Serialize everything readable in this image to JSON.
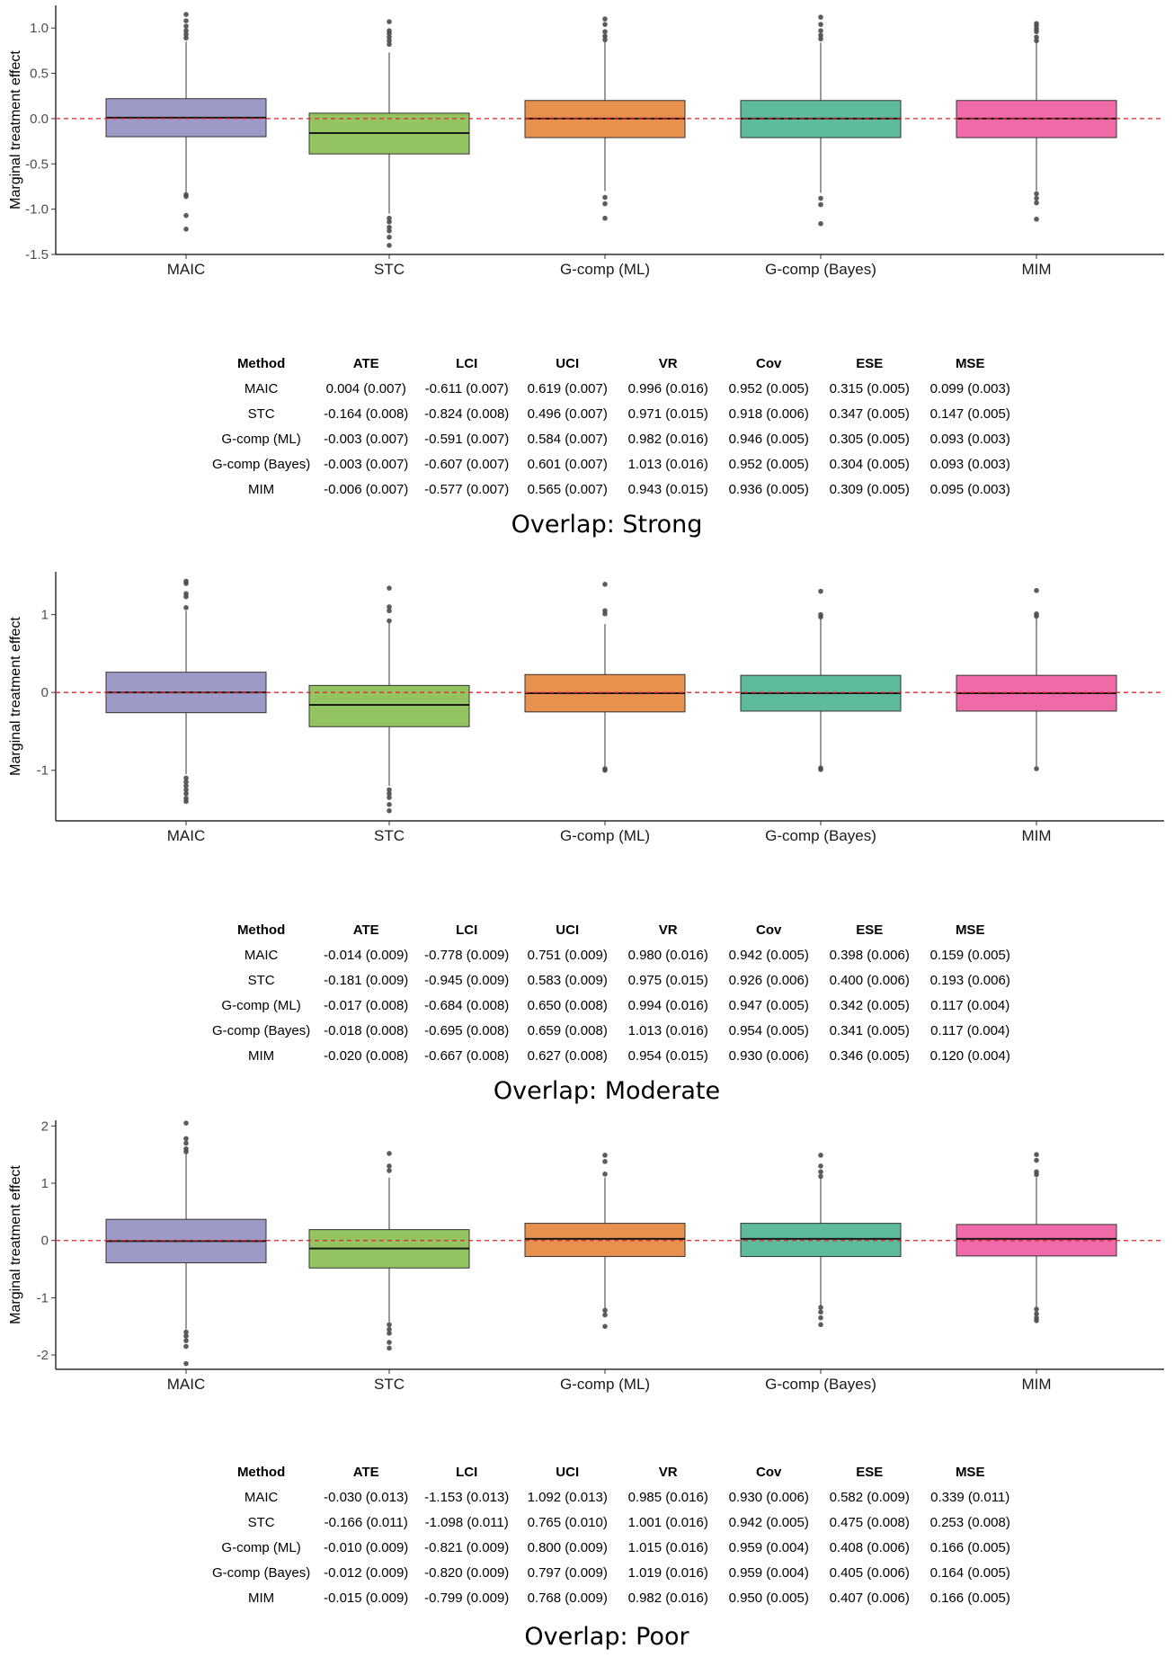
{
  "colors": {
    "MAIC": "#9e9ac8",
    "STC": "#93c461",
    "G-comp (ML)": "#e8904e",
    "G-comp (Bayes)": "#5dba9a",
    "MIM": "#ef6aa9",
    "reference_line": "#e0242a",
    "outlier": "#4a4a4a"
  },
  "chart_data": [
    {
      "type": "box",
      "ylabel": "Marginal treatment effect",
      "categories": [
        "MAIC",
        "STC",
        "G-comp (ML)",
        "G-comp (Bayes)",
        "MIM"
      ],
      "ylim": [
        -1.5,
        1.25
      ],
      "yticks": [
        1.0,
        0.5,
        0.0,
        -0.5,
        -1.0,
        -1.5
      ],
      "ytick_labels": [
        "1.0",
        "0.5",
        "0.0",
        "-0.5",
        "-1.0",
        "-1.5"
      ],
      "reference_y": 0,
      "boxes": [
        {
          "name": "MAIC",
          "q1": -0.2,
          "median": 0.01,
          "q3": 0.22,
          "whisker_low": -0.82,
          "whisker_high": 0.85,
          "outliers": [
            1.15,
            1.08,
            1.02,
            0.97,
            0.93,
            0.89,
            -0.84,
            -0.86,
            -1.07,
            -1.22
          ]
        },
        {
          "name": "STC",
          "q1": -0.39,
          "median": -0.16,
          "q3": 0.06,
          "whisker_low": -1.05,
          "whisker_high": 0.73,
          "outliers": [
            1.07,
            0.97,
            0.94,
            0.9,
            0.86,
            0.82,
            -1.1,
            -1.14,
            -1.2,
            -1.24,
            -1.31,
            -1.4
          ]
        },
        {
          "name": "G-comp (ML)",
          "q1": -0.21,
          "median": 0.0,
          "q3": 0.2,
          "whisker_low": -0.8,
          "whisker_high": 0.85,
          "outliers": [
            1.1,
            1.04,
            0.96,
            0.91,
            0.87,
            -0.87,
            -0.94,
            -1.1
          ]
        },
        {
          "name": "G-comp (Bayes)",
          "q1": -0.21,
          "median": 0.0,
          "q3": 0.2,
          "whisker_low": -0.82,
          "whisker_high": 0.84,
          "outliers": [
            1.12,
            1.04,
            0.97,
            0.92,
            0.88,
            -0.88,
            -0.95,
            -1.16
          ]
        },
        {
          "name": "MIM",
          "q1": -0.21,
          "median": 0.0,
          "q3": 0.2,
          "whisker_low": -0.8,
          "whisker_high": 0.84,
          "outliers": [
            1.05,
            1.02,
            0.99,
            0.96,
            0.9,
            0.86,
            -0.83,
            -0.88,
            -0.93,
            -1.11
          ]
        }
      ]
    },
    {
      "type": "box",
      "ylabel": "Marginal treatment effect",
      "categories": [
        "MAIC",
        "STC",
        "G-comp (ML)",
        "G-comp (Bayes)",
        "MIM"
      ],
      "ylim": [
        -1.65,
        1.55
      ],
      "yticks": [
        1,
        0,
        -1
      ],
      "ytick_labels": [
        "1",
        "0",
        "-1"
      ],
      "reference_y": 0,
      "boxes": [
        {
          "name": "MAIC",
          "q1": -0.26,
          "median": 0.0,
          "q3": 0.26,
          "whisker_low": -1.05,
          "whisker_high": 1.05,
          "outliers": [
            1.43,
            1.4,
            1.27,
            1.23,
            1.09,
            -1.1,
            -1.15,
            -1.2,
            -1.25,
            -1.3,
            -1.36,
            -1.4
          ]
        },
        {
          "name": "STC",
          "q1": -0.44,
          "median": -0.16,
          "q3": 0.09,
          "whisker_low": -1.2,
          "whisker_high": 0.9,
          "outliers": [
            1.34,
            1.1,
            1.05,
            0.92,
            -1.25,
            -1.3,
            -1.35,
            -1.44,
            -1.52
          ]
        },
        {
          "name": "G-comp (ML)",
          "q1": -0.25,
          "median": -0.01,
          "q3": 0.23,
          "whisker_low": -0.97,
          "whisker_high": 0.88,
          "outliers": [
            1.39,
            1.05,
            1.01,
            -0.98,
            -1.0
          ]
        },
        {
          "name": "G-comp (Bayes)",
          "q1": -0.24,
          "median": -0.01,
          "q3": 0.22,
          "whisker_low": -0.96,
          "whisker_high": 0.95,
          "outliers": [
            1.3,
            1.0,
            0.97,
            -0.97,
            -0.99
          ]
        },
        {
          "name": "MIM",
          "q1": -0.24,
          "median": -0.01,
          "q3": 0.22,
          "whisker_low": -0.96,
          "whisker_high": 0.95,
          "outliers": [
            1.31,
            1.01,
            0.98,
            -0.98
          ]
        }
      ]
    },
    {
      "type": "box",
      "ylabel": "Marginal treatment effect",
      "categories": [
        "MAIC",
        "STC",
        "G-comp (ML)",
        "G-comp (Bayes)",
        "MIM"
      ],
      "ylim": [
        -2.25,
        2.1
      ],
      "yticks": [
        2,
        1,
        0,
        -1,
        -2
      ],
      "ytick_labels": [
        "2",
        "1",
        "0",
        "-1",
        "-2"
      ],
      "reference_y": 0,
      "boxes": [
        {
          "name": "MAIC",
          "q1": -0.39,
          "median": -0.01,
          "q3": 0.37,
          "whisker_low": -1.55,
          "whisker_high": 1.52,
          "outliers": [
            2.05,
            1.78,
            1.7,
            1.6,
            1.55,
            -1.6,
            -1.67,
            -1.75,
            -1.85,
            -2.15
          ]
        },
        {
          "name": "STC",
          "q1": -0.48,
          "median": -0.14,
          "q3": 0.19,
          "whisker_low": -1.42,
          "whisker_high": 1.1,
          "outliers": [
            1.52,
            1.3,
            1.22,
            -1.47,
            -1.55,
            -1.62,
            -1.78,
            -1.88
          ]
        },
        {
          "name": "G-comp (ML)",
          "q1": -0.28,
          "median": 0.03,
          "q3": 0.3,
          "whisker_low": -1.2,
          "whisker_high": 1.1,
          "outliers": [
            1.49,
            1.38,
            1.16,
            -1.22,
            -1.3,
            -1.5
          ]
        },
        {
          "name": "G-comp (Bayes)",
          "q1": -0.28,
          "median": 0.03,
          "q3": 0.3,
          "whisker_low": -1.15,
          "whisker_high": 1.1,
          "outliers": [
            1.49,
            1.3,
            1.2,
            1.12,
            -1.17,
            -1.25,
            -1.35,
            -1.47
          ]
        },
        {
          "name": "MIM",
          "q1": -0.27,
          "median": 0.03,
          "q3": 0.28,
          "whisker_low": -1.18,
          "whisker_high": 1.1,
          "outliers": [
            1.5,
            1.4,
            1.2,
            1.15,
            -1.2,
            -1.28,
            -1.35,
            -1.4
          ]
        }
      ]
    }
  ],
  "tables": [
    {
      "headers": [
        "Method",
        "ATE",
        "LCI",
        "UCI",
        "VR",
        "Cov",
        "ESE",
        "MSE"
      ],
      "rows": [
        [
          "MAIC",
          "0.004 (0.007)",
          "-0.611 (0.007)",
          "0.619 (0.007)",
          "0.996 (0.016)",
          "0.952 (0.005)",
          "0.315 (0.005)",
          "0.099 (0.003)"
        ],
        [
          "STC",
          "-0.164 (0.008)",
          "-0.824 (0.008)",
          "0.496 (0.007)",
          "0.971 (0.015)",
          "0.918 (0.006)",
          "0.347 (0.005)",
          "0.147 (0.005)"
        ],
        [
          "G-comp (ML)",
          "-0.003 (0.007)",
          "-0.591 (0.007)",
          "0.584 (0.007)",
          "0.982 (0.016)",
          "0.946 (0.005)",
          "0.305 (0.005)",
          "0.093 (0.003)"
        ],
        [
          "G-comp (Bayes)",
          "-0.003 (0.007)",
          "-0.607 (0.007)",
          "0.601 (0.007)",
          "1.013 (0.016)",
          "0.952 (0.005)",
          "0.304 (0.005)",
          "0.093 (0.003)"
        ],
        [
          "MIM",
          "-0.006 (0.007)",
          "-0.577 (0.007)",
          "0.565 (0.007)",
          "0.943 (0.015)",
          "0.936 (0.005)",
          "0.309 (0.005)",
          "0.095 (0.003)"
        ]
      ],
      "caption": "Overlap: Strong"
    },
    {
      "headers": [
        "Method",
        "ATE",
        "LCI",
        "UCI",
        "VR",
        "Cov",
        "ESE",
        "MSE"
      ],
      "rows": [
        [
          "MAIC",
          "-0.014 (0.009)",
          "-0.778 (0.009)",
          "0.751 (0.009)",
          "0.980 (0.016)",
          "0.942 (0.005)",
          "0.398 (0.006)",
          "0.159 (0.005)"
        ],
        [
          "STC",
          "-0.181 (0.009)",
          "-0.945 (0.009)",
          "0.583 (0.009)",
          "0.975 (0.015)",
          "0.926 (0.006)",
          "0.400 (0.006)",
          "0.193 (0.006)"
        ],
        [
          "G-comp (ML)",
          "-0.017 (0.008)",
          "-0.684 (0.008)",
          "0.650 (0.008)",
          "0.994 (0.016)",
          "0.947 (0.005)",
          "0.342 (0.005)",
          "0.117 (0.004)"
        ],
        [
          "G-comp (Bayes)",
          "-0.018 (0.008)",
          "-0.695 (0.008)",
          "0.659 (0.008)",
          "1.013 (0.016)",
          "0.954 (0.005)",
          "0.341 (0.005)",
          "0.117 (0.004)"
        ],
        [
          "MIM",
          "-0.020 (0.008)",
          "-0.667 (0.008)",
          "0.627 (0.008)",
          "0.954 (0.015)",
          "0.930 (0.006)",
          "0.346 (0.005)",
          "0.120 (0.004)"
        ]
      ],
      "caption": "Overlap: Moderate"
    },
    {
      "headers": [
        "Method",
        "ATE",
        "LCI",
        "UCI",
        "VR",
        "Cov",
        "ESE",
        "MSE"
      ],
      "rows": [
        [
          "MAIC",
          "-0.030 (0.013)",
          "-1.153 (0.013)",
          "1.092 (0.013)",
          "0.985 (0.016)",
          "0.930 (0.006)",
          "0.582 (0.009)",
          "0.339 (0.011)"
        ],
        [
          "STC",
          "-0.166 (0.011)",
          "-1.098 (0.011)",
          "0.765 (0.010)",
          "1.001 (0.016)",
          "0.942 (0.005)",
          "0.475 (0.008)",
          "0.253 (0.008)"
        ],
        [
          "G-comp (ML)",
          "-0.010 (0.009)",
          "-0.821 (0.009)",
          "0.800 (0.009)",
          "1.015 (0.016)",
          "0.959 (0.004)",
          "0.408 (0.006)",
          "0.166 (0.005)"
        ],
        [
          "G-comp (Bayes)",
          "-0.012 (0.009)",
          "-0.820 (0.009)",
          "0.797 (0.009)",
          "1.019 (0.016)",
          "0.959 (0.004)",
          "0.405 (0.006)",
          "0.164 (0.005)"
        ],
        [
          "MIM",
          "-0.015 (0.009)",
          "-0.799 (0.009)",
          "0.768 (0.009)",
          "0.982 (0.016)",
          "0.950 (0.005)",
          "0.407 (0.006)",
          "0.166 (0.005)"
        ]
      ],
      "caption": "Overlap: Poor"
    }
  ]
}
